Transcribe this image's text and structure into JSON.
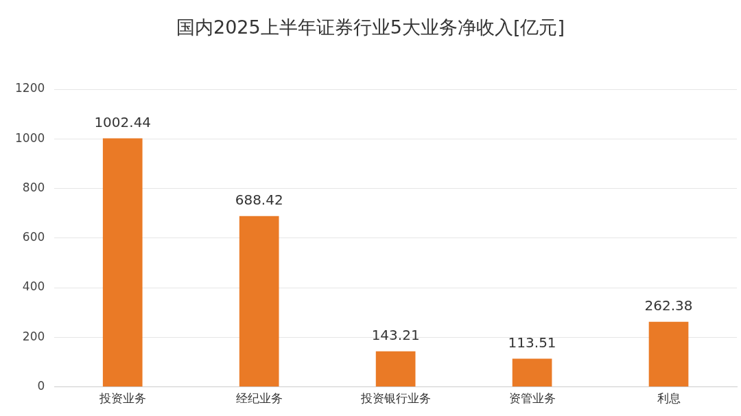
{
  "chart_data": {
    "type": "bar",
    "title": "国内2025上半年证券行业5大业务净收入[亿元]",
    "categories": [
      "投资业务",
      "经纪业务",
      "投资银行业务",
      "资管业务",
      "利息"
    ],
    "values": [
      1002.44,
      688.42,
      143.21,
      113.51,
      262.38
    ],
    "color": "#ea7a26",
    "ylim": [
      0,
      1200
    ],
    "yticks": [
      0,
      200,
      400,
      600,
      800,
      1000,
      1200
    ],
    "grid": "y",
    "data_labels": true,
    "legend": false
  }
}
